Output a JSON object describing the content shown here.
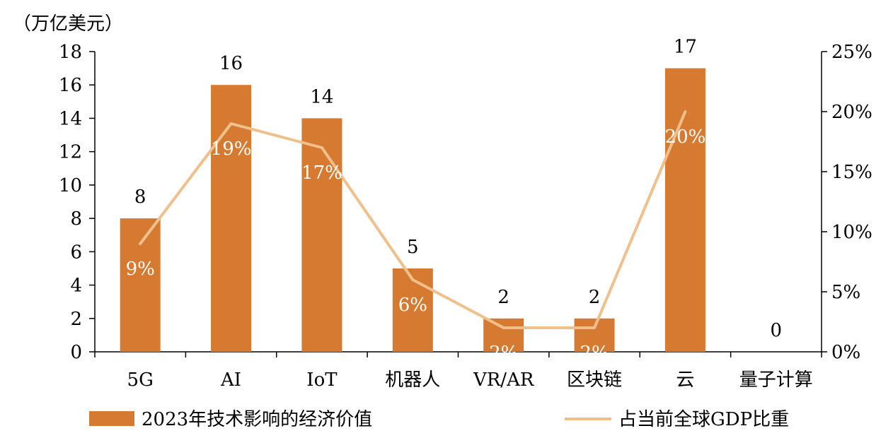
{
  "chart_data": {
    "type": "bar",
    "unit_label": "（万亿美元）",
    "categories": [
      "5G",
      "AI",
      "IoT",
      "机器人",
      "VR/AR",
      "区块链",
      "云",
      "量子计算"
    ],
    "series": [
      {
        "name": "2023年技术影响的经济价值",
        "type": "bar",
        "axis": "left",
        "color": "#D57A30",
        "values": [
          8,
          16,
          14,
          5,
          2,
          2,
          17,
          0
        ],
        "data_labels": [
          "8",
          "16",
          "14",
          "5",
          "2",
          "2",
          "17",
          "0"
        ]
      },
      {
        "name": "占当前全球GDP比重",
        "type": "line",
        "axis": "right",
        "color": "#F0C08C",
        "values": [
          9,
          19,
          17,
          6,
          2,
          2,
          20,
          null
        ],
        "data_labels": [
          "9%",
          "19%",
          "17%",
          "6%",
          "2%",
          "2%",
          "20%",
          ""
        ]
      }
    ],
    "y_left": {
      "min": 0,
      "max": 18,
      "ticks": [
        "0",
        "2",
        "4",
        "6",
        "8",
        "10",
        "12",
        "14",
        "16",
        "18"
      ]
    },
    "y_right": {
      "min": 0,
      "max": 25,
      "ticks": [
        "0%",
        "5%",
        "10%",
        "15%",
        "20%",
        "25%"
      ]
    },
    "grid": false,
    "legend_position": "bottom"
  }
}
